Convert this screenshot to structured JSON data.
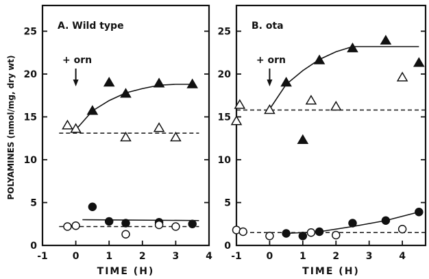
{
  "figure": {
    "ylabel": "POLYAMINES (nmol/mg, dry wt)"
  },
  "chart_data": [
    {
      "type": "scatter",
      "title": "A. Wild type",
      "xlabel": "TIME (H)",
      "ylabel": "POLYAMINES (nmol/mg, dry wt)",
      "xlim": [
        -1,
        4
      ],
      "ylim": [
        0,
        28
      ],
      "xticks": [
        "-1",
        "0",
        "1",
        "2",
        "3",
        "4"
      ],
      "yticks": [
        "0",
        "5",
        "10",
        "15",
        "20",
        "25"
      ],
      "annotation": {
        "text": "+ orn",
        "x": 0
      },
      "series": [
        {
          "marker": "filled-triangle",
          "points": [
            [
              0.5,
              15.7
            ],
            [
              1.0,
              19.0
            ],
            [
              1.5,
              17.7
            ],
            [
              2.5,
              18.9
            ],
            [
              3.5,
              18.8
            ]
          ]
        },
        {
          "marker": "open-triangle",
          "points": [
            [
              -0.25,
              14.0
            ],
            [
              0.0,
              13.6
            ],
            [
              1.5,
              12.6
            ],
            [
              2.5,
              13.7
            ],
            [
              3.0,
              12.6
            ]
          ]
        },
        {
          "marker": "filled-circle",
          "points": [
            [
              0.5,
              4.5
            ],
            [
              1.0,
              2.8
            ],
            [
              1.5,
              2.6
            ],
            [
              2.5,
              2.7
            ],
            [
              3.5,
              2.5
            ]
          ]
        },
        {
          "marker": "open-circle",
          "points": [
            [
              -0.25,
              2.2
            ],
            [
              0.0,
              2.3
            ],
            [
              1.5,
              1.3
            ],
            [
              2.5,
              2.4
            ],
            [
              3.0,
              2.2
            ]
          ]
        }
      ],
      "lines": [
        {
          "style": "solid",
          "points": [
            [
              0.0,
              13.5
            ],
            [
              0.5,
              15.7
            ],
            [
              1.0,
              16.9
            ],
            [
              1.5,
              17.8
            ],
            [
              2.0,
              18.3
            ],
            [
              2.5,
              18.7
            ],
            [
              3.0,
              18.8
            ],
            [
              3.5,
              18.8
            ]
          ]
        },
        {
          "style": "dashed",
          "points": [
            [
              -0.5,
              13.1
            ],
            [
              3.7,
              13.1
            ]
          ]
        },
        {
          "style": "solid",
          "points": [
            [
              0.2,
              3.0
            ],
            [
              3.7,
              2.9
            ]
          ]
        },
        {
          "style": "dashed",
          "points": [
            [
              -0.5,
              2.2
            ],
            [
              3.7,
              2.2
            ]
          ]
        }
      ]
    },
    {
      "type": "scatter",
      "title": "B. ota",
      "xlabel": "TIME (H)",
      "ylabel": "",
      "xlim": [
        -1,
        4.7
      ],
      "ylim": [
        0,
        28
      ],
      "xticks": [
        "-1",
        "0",
        "1",
        "2",
        "3",
        "4"
      ],
      "yticks": [
        "0",
        "5",
        "10",
        "15",
        "20",
        "25"
      ],
      "annotation": {
        "text": "+ orn",
        "x": 0
      },
      "series": [
        {
          "marker": "filled-triangle",
          "points": [
            [
              0.5,
              19.0
            ],
            [
              1.0,
              12.3
            ],
            [
              1.5,
              21.6
            ],
            [
              2.5,
              23.0
            ],
            [
              3.5,
              23.9
            ],
            [
              4.5,
              21.3
            ]
          ]
        },
        {
          "marker": "open-triangle",
          "points": [
            [
              -1.0,
              14.5
            ],
            [
              -0.9,
              16.4
            ],
            [
              0.0,
              15.8
            ],
            [
              1.25,
              16.9
            ],
            [
              2.0,
              16.2
            ],
            [
              4.0,
              19.6
            ]
          ]
        },
        {
          "marker": "filled-circle",
          "points": [
            [
              0.5,
              1.4
            ],
            [
              1.0,
              1.1
            ],
            [
              1.5,
              1.6
            ],
            [
              2.5,
              2.6
            ],
            [
              3.5,
              2.9
            ],
            [
              4.5,
              3.9
            ]
          ]
        },
        {
          "marker": "open-circle",
          "points": [
            [
              -1.0,
              1.8
            ],
            [
              -0.8,
              1.6
            ],
            [
              0.0,
              1.1
            ],
            [
              1.25,
              1.5
            ],
            [
              2.0,
              1.2
            ],
            [
              4.0,
              1.9
            ]
          ]
        }
      ],
      "lines": [
        {
          "style": "solid",
          "points": [
            [
              0.0,
              15.9
            ],
            [
              0.5,
              18.8
            ],
            [
              1.0,
              20.4
            ],
            [
              1.5,
              21.7
            ],
            [
              2.0,
              22.6
            ],
            [
              2.5,
              23.2
            ],
            [
              4.5,
              23.2
            ]
          ]
        },
        {
          "style": "dashed",
          "points": [
            [
              -1.0,
              15.8
            ],
            [
              4.7,
              15.8
            ]
          ]
        },
        {
          "style": "solid",
          "points": [
            [
              0.5,
              1.4
            ],
            [
              1.5,
              1.6
            ],
            [
              2.5,
              2.2
            ],
            [
              3.5,
              2.9
            ],
            [
              4.5,
              3.9
            ]
          ]
        },
        {
          "style": "dashed",
          "points": [
            [
              -1.0,
              1.5
            ],
            [
              4.7,
              1.5
            ]
          ]
        }
      ]
    }
  ]
}
